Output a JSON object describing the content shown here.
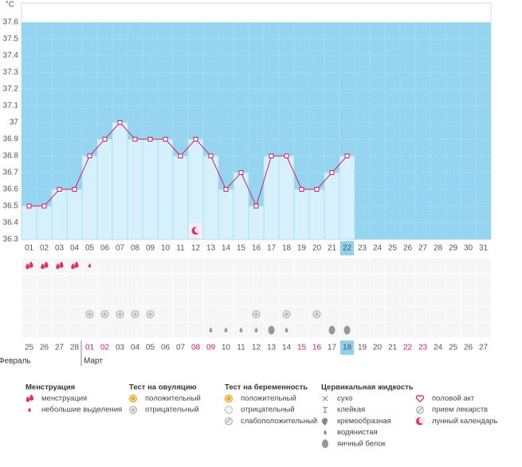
{
  "chart_data": {
    "type": "line",
    "y_label": "°C",
    "ylim": [
      36.3,
      37.7
    ],
    "yticks": [
      36.3,
      36.4,
      36.5,
      36.6,
      36.7,
      36.8,
      36.9,
      37,
      37.1,
      37.2,
      37.3,
      37.4,
      37.5,
      37.6
    ],
    "grid": true,
    "color": "#d0206a",
    "categories": [
      "01",
      "02",
      "03",
      "04",
      "05",
      "06",
      "07",
      "08",
      "09",
      "10",
      "11",
      "12",
      "13",
      "14",
      "15",
      "16",
      "17",
      "18",
      "19",
      "20",
      "21",
      "22",
      "23",
      "24",
      "25",
      "26",
      "27",
      "28",
      "29",
      "30",
      "31"
    ],
    "values": [
      36.5,
      36.5,
      36.6,
      36.6,
      36.8,
      36.9,
      37.0,
      36.9,
      36.9,
      36.9,
      36.8,
      36.9,
      36.8,
      36.6,
      36.7,
      36.5,
      36.8,
      36.8,
      36.6,
      36.6,
      36.7,
      36.8,
      null,
      null,
      null,
      null,
      null,
      null,
      null,
      null,
      null
    ],
    "highlight_index": 21,
    "dates": [
      "25",
      "26",
      "27",
      "28",
      "01",
      "02",
      "03",
      "04",
      "05",
      "06",
      "07",
      "08",
      "09",
      "10",
      "11",
      "12",
      "13",
      "14",
      "15",
      "16",
      "17",
      "18",
      "19",
      "20",
      "21",
      "22",
      "23",
      "24",
      "25",
      "26",
      "27"
    ],
    "red_dates": [
      4,
      5,
      11,
      12,
      18,
      19,
      25,
      26
    ],
    "months": [
      {
        "label": "Февраль",
        "index": 0
      },
      {
        "label": "Март",
        "index": 4
      }
    ],
    "icons": [
      {
        "icon": "menstruation",
        "days": [
          0,
          1,
          2,
          3
        ]
      },
      {
        "icon": "spotting",
        "days": [
          4
        ]
      },
      {
        "icon": "negative",
        "days": [
          4,
          5,
          6,
          7,
          8,
          15,
          17,
          19
        ]
      },
      {
        "icon": "watery",
        "days": [
          12,
          13,
          14,
          15,
          17
        ]
      },
      {
        "icon": "egg",
        "days": [
          16,
          20,
          21
        ]
      },
      {
        "icon": "moon",
        "days": [
          11
        ]
      }
    ],
    "legend": [
      {
        "title": "Менструация",
        "items": [
          {
            "icon": "menstruation",
            "label": "менструация"
          },
          {
            "icon": "spotting",
            "label": "небольшие выделения"
          }
        ]
      },
      {
        "title": "Тест на овуляцию",
        "items": [
          {
            "icon": "positive",
            "label": "положительный"
          },
          {
            "icon": "negative",
            "label": "отрицательный"
          }
        ]
      },
      {
        "title": "Тест на беременность",
        "items": [
          {
            "icon": "positive",
            "label": "положительный"
          },
          {
            "icon": "negwhite",
            "label": "отрицательный"
          },
          {
            "icon": "weak",
            "label": "слабоположительный"
          }
        ]
      },
      {
        "title": "Цервикальная жидкость",
        "items": [
          {
            "icon": "dry",
            "label": "сухо"
          },
          {
            "icon": "sticky",
            "label": "клейкая"
          },
          {
            "icon": "creamy",
            "label": "кремообразная"
          },
          {
            "icon": "watery",
            "label": "водянистая"
          },
          {
            "icon": "egg",
            "label": "яичный белок"
          }
        ]
      },
      {
        "items": [
          {
            "icon": "heart",
            "label": "половой акт"
          },
          {
            "icon": "pill",
            "label": "прием лекарств"
          },
          {
            "icon": "moon",
            "label": "лунный календарь"
          }
        ]
      }
    ]
  }
}
